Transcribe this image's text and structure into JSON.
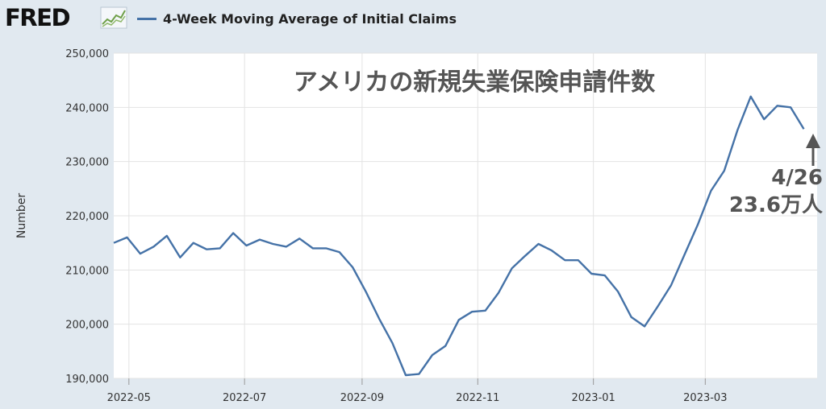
{
  "header": {
    "logo_text": "FRED",
    "legend_label": "4-Week Moving Average of Initial Claims",
    "line_color": "#4572a7"
  },
  "chart_data": {
    "type": "line",
    "title": "アメリカの新規失業保険申請件数",
    "ylabel": "Number",
    "xlabel": "",
    "ylim": [
      190000,
      250000
    ],
    "y_ticks": [
      190000,
      200000,
      210000,
      220000,
      230000,
      240000,
      250000
    ],
    "y_tick_labels": [
      "190,000",
      "200,000",
      "210,000",
      "220,000",
      "230,000",
      "240,000",
      "250,000"
    ],
    "x_range": [
      "2022-04-23",
      "2023-04-29"
    ],
    "x_ticks": [
      "2022-05-01",
      "2022-07-01",
      "2022-09-01",
      "2022-11-01",
      "2023-01-01",
      "2023-03-01"
    ],
    "x_tick_labels": [
      "2022-05",
      "2022-07",
      "2022-09",
      "2022-11",
      "2023-01",
      "2023-03"
    ],
    "grid": true,
    "annotation": {
      "date_label": "4/26",
      "value_label": "23.6万人"
    },
    "series": [
      {
        "name": "4-Week Moving Average of Initial Claims",
        "x": [
          "2022-04-23",
          "2022-04-30",
          "2022-05-07",
          "2022-05-14",
          "2022-05-21",
          "2022-05-28",
          "2022-06-04",
          "2022-06-11",
          "2022-06-18",
          "2022-06-25",
          "2022-07-02",
          "2022-07-09",
          "2022-07-16",
          "2022-07-23",
          "2022-07-30",
          "2022-08-06",
          "2022-08-13",
          "2022-08-20",
          "2022-08-27",
          "2022-09-03",
          "2022-09-10",
          "2022-09-17",
          "2022-09-24",
          "2022-10-01",
          "2022-10-08",
          "2022-10-15",
          "2022-10-22",
          "2022-10-29",
          "2022-11-05",
          "2022-11-12",
          "2022-11-19",
          "2022-11-26",
          "2022-12-03",
          "2022-12-10",
          "2022-12-17",
          "2022-12-24",
          "2022-12-31",
          "2023-01-07",
          "2023-01-14",
          "2023-01-21",
          "2023-01-28",
          "2023-02-04",
          "2023-02-11",
          "2023-02-18",
          "2023-02-25",
          "2023-03-04",
          "2023-03-11",
          "2023-03-18",
          "2023-03-25",
          "2023-04-01",
          "2023-04-08",
          "2023-04-15",
          "2023-04-22"
        ],
        "values": [
          215000,
          216000,
          213000,
          214300,
          216300,
          212300,
          215000,
          213800,
          214000,
          216800,
          214500,
          215600,
          214800,
          214300,
          215800,
          214000,
          214000,
          213300,
          210500,
          206000,
          201000,
          196500,
          190600,
          190800,
          194300,
          196000,
          200800,
          202300,
          202500,
          205800,
          210300,
          212600,
          214800,
          213600,
          211800,
          211800,
          209300,
          209000,
          206000,
          201300,
          199600,
          203300,
          207200,
          212800,
          218300,
          224600,
          228300,
          235800,
          242000,
          237800,
          240300,
          240000,
          236000
        ]
      }
    ]
  }
}
